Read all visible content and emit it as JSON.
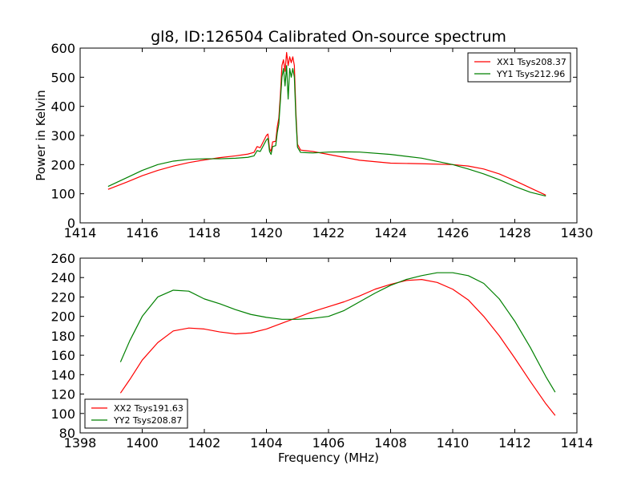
{
  "chart_data": [
    {
      "type": "line",
      "title": "gl8, ID:126504 Calibrated On-source spectrum",
      "xlabel": "",
      "ylabel": "Power in Kelvin",
      "xlim": [
        1414,
        1430
      ],
      "ylim": [
        0,
        600
      ],
      "xticks": [
        1414,
        1416,
        1418,
        1420,
        1422,
        1424,
        1426,
        1428,
        1430
      ],
      "yticks": [
        0,
        100,
        200,
        300,
        400,
        500,
        600
      ],
      "grid": false,
      "legend": "top-right",
      "series": [
        {
          "name": "XX1 Tsys208.37",
          "color": "#ff0000",
          "points": [
            [
              1414.9,
              115
            ],
            [
              1415.5,
              140
            ],
            [
              1416,
              162
            ],
            [
              1416.5,
              180
            ],
            [
              1417,
              195
            ],
            [
              1417.5,
              207
            ],
            [
              1418,
              216
            ],
            [
              1418.5,
              224
            ],
            [
              1419,
              230
            ],
            [
              1419.4,
              236
            ],
            [
              1419.6,
              242
            ],
            [
              1419.7,
              262
            ],
            [
              1419.8,
              258
            ],
            [
              1420.0,
              300
            ],
            [
              1420.05,
              305
            ],
            [
              1420.1,
              255
            ],
            [
              1420.15,
              245
            ],
            [
              1420.2,
              278
            ],
            [
              1420.3,
              280
            ],
            [
              1420.35,
              330
            ],
            [
              1420.4,
              360
            ],
            [
              1420.45,
              440
            ],
            [
              1420.5,
              540
            ],
            [
              1420.55,
              560
            ],
            [
              1420.6,
              520
            ],
            [
              1420.65,
              585
            ],
            [
              1420.7,
              540
            ],
            [
              1420.75,
              570
            ],
            [
              1420.8,
              550
            ],
            [
              1420.85,
              570
            ],
            [
              1420.9,
              540
            ],
            [
              1420.95,
              380
            ],
            [
              1421.0,
              270
            ],
            [
              1421.1,
              250
            ],
            [
              1421.5,
              245
            ],
            [
              1422,
              235
            ],
            [
              1423,
              215
            ],
            [
              1424,
              205
            ],
            [
              1425,
              203
            ],
            [
              1426,
              200
            ],
            [
              1426.5,
              195
            ],
            [
              1427,
              185
            ],
            [
              1427.5,
              168
            ],
            [
              1428,
              145
            ],
            [
              1428.5,
              120
            ],
            [
              1429,
              95
            ]
          ]
        },
        {
          "name": "YY1 Tsys212.96",
          "color": "#008000",
          "points": [
            [
              1414.9,
              125
            ],
            [
              1415.5,
              155
            ],
            [
              1416,
              180
            ],
            [
              1416.5,
              200
            ],
            [
              1417,
              212
            ],
            [
              1417.5,
              218
            ],
            [
              1418,
              220
            ],
            [
              1418.5,
              220
            ],
            [
              1419,
              222
            ],
            [
              1419.4,
              225
            ],
            [
              1419.6,
              230
            ],
            [
              1419.7,
              248
            ],
            [
              1419.8,
              245
            ],
            [
              1420.0,
              285
            ],
            [
              1420.05,
              290
            ],
            [
              1420.1,
              245
            ],
            [
              1420.15,
              235
            ],
            [
              1420.2,
              262
            ],
            [
              1420.3,
              265
            ],
            [
              1420.35,
              310
            ],
            [
              1420.4,
              340
            ],
            [
              1420.45,
              420
            ],
            [
              1420.5,
              500
            ],
            [
              1420.55,
              530
            ],
            [
              1420.6,
              470
            ],
            [
              1420.65,
              540
            ],
            [
              1420.7,
              425
            ],
            [
              1420.75,
              530
            ],
            [
              1420.8,
              500
            ],
            [
              1420.85,
              530
            ],
            [
              1420.9,
              500
            ],
            [
              1420.95,
              360
            ],
            [
              1421.0,
              260
            ],
            [
              1421.1,
              242
            ],
            [
              1421.5,
              240
            ],
            [
              1422,
              243
            ],
            [
              1422.5,
              244
            ],
            [
              1423,
              243
            ],
            [
              1424,
              235
            ],
            [
              1425,
              222
            ],
            [
              1426,
              200
            ],
            [
              1426.5,
              185
            ],
            [
              1427,
              168
            ],
            [
              1427.5,
              148
            ],
            [
              1428,
              125
            ],
            [
              1428.5,
              105
            ],
            [
              1429,
              92
            ]
          ]
        }
      ]
    },
    {
      "type": "line",
      "title": "",
      "xlabel": "Frequency (MHz)",
      "ylabel": "",
      "xlim": [
        1398,
        1414
      ],
      "ylim": [
        80,
        260
      ],
      "xticks": [
        1398,
        1400,
        1402,
        1404,
        1406,
        1408,
        1410,
        1412,
        1414
      ],
      "yticks": [
        80,
        100,
        120,
        140,
        160,
        180,
        200,
        220,
        240,
        260
      ],
      "grid": false,
      "legend": "bottom-left",
      "series": [
        {
          "name": "XX2 Tsys191.63",
          "color": "#ff0000",
          "points": [
            [
              1399.3,
              121
            ],
            [
              1399.6,
              135
            ],
            [
              1400,
              155
            ],
            [
              1400.5,
              173
            ],
            [
              1401,
              185
            ],
            [
              1401.5,
              188
            ],
            [
              1402,
              187
            ],
            [
              1402.5,
              184
            ],
            [
              1403,
              182
            ],
            [
              1403.5,
              183
            ],
            [
              1404,
              187
            ],
            [
              1404.5,
              193
            ],
            [
              1405,
              199
            ],
            [
              1405.5,
              205
            ],
            [
              1406,
              210
            ],
            [
              1406.5,
              215
            ],
            [
              1407,
              221
            ],
            [
              1407.5,
              228
            ],
            [
              1408,
              233
            ],
            [
              1408.5,
              237
            ],
            [
              1409,
              238
            ],
            [
              1409.5,
              235
            ],
            [
              1410,
              228
            ],
            [
              1410.5,
              217
            ],
            [
              1411,
              200
            ],
            [
              1411.5,
              180
            ],
            [
              1412,
              157
            ],
            [
              1412.5,
              133
            ],
            [
              1413,
              110
            ],
            [
              1413.3,
              98
            ]
          ]
        },
        {
          "name": "YY2 Tsys208.87",
          "color": "#008000",
          "points": [
            [
              1399.3,
              153
            ],
            [
              1399.6,
              175
            ],
            [
              1400,
              200
            ],
            [
              1400.5,
              220
            ],
            [
              1401,
              227
            ],
            [
              1401.5,
              226
            ],
            [
              1402,
              218
            ],
            [
              1402.5,
              213
            ],
            [
              1403,
              207
            ],
            [
              1403.5,
              202
            ],
            [
              1404,
              199
            ],
            [
              1404.5,
              197
            ],
            [
              1405,
              197
            ],
            [
              1405.5,
              198
            ],
            [
              1406,
              200
            ],
            [
              1406.5,
              206
            ],
            [
              1407,
              215
            ],
            [
              1407.5,
              224
            ],
            [
              1408,
              232
            ],
            [
              1408.5,
              238
            ],
            [
              1409,
              242
            ],
            [
              1409.5,
              245
            ],
            [
              1410,
              245
            ],
            [
              1410.5,
              242
            ],
            [
              1411,
              234
            ],
            [
              1411.5,
              218
            ],
            [
              1412,
              195
            ],
            [
              1412.5,
              168
            ],
            [
              1413,
              138
            ],
            [
              1413.3,
              122
            ]
          ]
        }
      ]
    }
  ]
}
